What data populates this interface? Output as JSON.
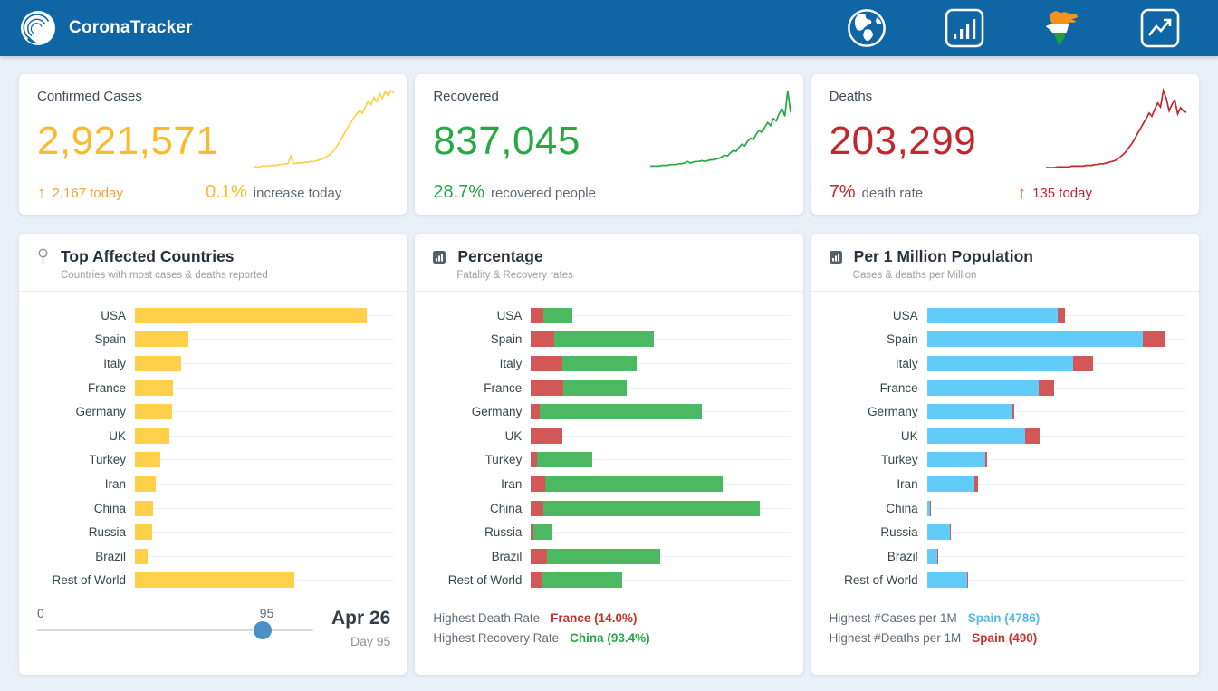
{
  "navbar": {
    "brand": "CoronaTracker",
    "icons": [
      {
        "name": "globe-icon",
        "meaning": "world overview"
      },
      {
        "name": "bar-chart-icon",
        "meaning": "charts view"
      },
      {
        "name": "india-map-icon",
        "meaning": "india view"
      },
      {
        "name": "trend-icon",
        "meaning": "analytics view"
      }
    ]
  },
  "colors": {
    "navbar_bg": "#1065a5",
    "page_bg": "#eaf0f7",
    "confirmed_text": "#fcba2a",
    "confirmed_bar": "#ffd04a",
    "confirmed_accent": "#f9a13d",
    "recovered_text": "#28a745",
    "recovery_bar": "#4cb861",
    "deaths_text": "#c1272d",
    "fatality_bar": "#d25757",
    "cases_per_1m_bar": "#62ccf8",
    "highlight_blue": "#55b7ea",
    "slider_thumb": "#4b8fc7"
  },
  "summary_cards": [
    {
      "title": "Confirmed Cases",
      "value": "2,921,571",
      "today": "2,167 today",
      "rate": "0.1%",
      "rate_label": "increase today",
      "sparkline": [
        2,
        2,
        2,
        3,
        3,
        3,
        4,
        4,
        4,
        5,
        5,
        6,
        6,
        16,
        6,
        7,
        7,
        7,
        8,
        8,
        9,
        9,
        10,
        11,
        12,
        14,
        16,
        19,
        23,
        28,
        34,
        40,
        47,
        53,
        59,
        65,
        70,
        74,
        71,
        79,
        86,
        82,
        91,
        86,
        96,
        90,
        99,
        93,
        100,
        97
      ]
    },
    {
      "title": "Recovered",
      "value": "837,045",
      "rate": "28.7%",
      "rate_label": "recovered people",
      "sparkline": [
        3,
        3,
        3,
        3,
        4,
        4,
        4,
        5,
        5,
        5,
        6,
        6,
        7,
        9,
        7,
        8,
        9,
        9,
        10,
        9,
        10,
        11,
        11,
        12,
        13,
        15,
        17,
        16,
        20,
        23,
        22,
        27,
        31,
        29,
        35,
        39,
        37,
        44,
        49,
        46,
        53,
        59,
        55,
        64,
        61,
        70,
        77,
        67,
        100,
        72
      ]
    },
    {
      "title": "Deaths",
      "value": "203,299",
      "rate": "7%",
      "rate_label": "death rate",
      "today": "135 today",
      "sparkline": [
        1,
        1,
        1,
        1,
        2,
        2,
        2,
        2,
        2,
        3,
        3,
        3,
        3,
        3,
        4,
        4,
        4,
        5,
        5,
        6,
        6,
        7,
        8,
        9,
        10,
        12,
        15,
        18,
        22,
        27,
        32,
        38,
        45,
        51,
        58,
        64,
        71,
        67,
        76,
        84,
        79,
        100,
        90,
        74,
        82,
        88,
        70,
        78,
        74,
        72
      ]
    }
  ],
  "panels": [
    {
      "title": "Top Affected Countries",
      "subtitle": "Countries with most cases & deaths reported",
      "icon": "pin-icon"
    },
    {
      "title": "Percentage",
      "subtitle": "Fatality & Recovery rates",
      "icon": "mini-bar-chart-icon",
      "footer": [
        {
          "label": "Highest Death Rate",
          "value": "France (14.0%)"
        },
        {
          "label": "Highest Recovery Rate",
          "value": "China (93.4%)"
        }
      ]
    },
    {
      "title": "Per 1 Million Population",
      "subtitle": "Cases & deaths per Million",
      "icon": "mini-bar-chart-icon",
      "footer": [
        {
          "label": "Highest #Cases per 1M",
          "value": "Spain (4786)"
        },
        {
          "label": "Highest #Deaths per 1M",
          "value": "Spain (490)"
        }
      ]
    }
  ],
  "slider": {
    "min_label": "0",
    "value_label": "95",
    "thumb_percent": 81.5,
    "date": "Apr 26",
    "day_label": "Day 95"
  },
  "chart_data": [
    {
      "type": "bar",
      "title": "Top Affected Countries",
      "categories": [
        "USA",
        "Spain",
        "Italy",
        "France",
        "Germany",
        "UK",
        "Turkey",
        "Iran",
        "China",
        "Russia",
        "Brazil",
        "Rest of World"
      ],
      "series": [
        {
          "name": "Confirmed cases (relative, % of max)",
          "color": "#ffd04a",
          "values": [
            100,
            23,
            20,
            16.5,
            16,
            15,
            11,
            9,
            8,
            7.5,
            5.5,
            69
          ]
        }
      ],
      "xlim": [
        0,
        112
      ],
      "grid": "per-row horizontal gridlines",
      "legend": "none",
      "note": "bar lengths estimated from pixels; no numeric axis shown"
    },
    {
      "type": "bar",
      "stacked": true,
      "title": "Percentage",
      "categories": [
        "USA",
        "Spain",
        "Italy",
        "France",
        "Germany",
        "UK",
        "Turkey",
        "Iran",
        "China",
        "Russia",
        "Brazil",
        "Rest of World"
      ],
      "series": [
        {
          "name": "Fatality rate (%)",
          "color": "#d25757",
          "values": [
            5.5,
            10.0,
            13.5,
            14.0,
            3.8,
            13.6,
            2.5,
            6.3,
            5.5,
            0.9,
            6.8,
            4.5
          ]
        },
        {
          "name": "Recovery rate (%)",
          "color": "#4cb861",
          "values": [
            12.5,
            43.0,
            32.0,
            27.5,
            70.0,
            0,
            24.0,
            76.5,
            93.4,
            8.5,
            49.0,
            35.0
          ]
        }
      ],
      "xlim": [
        0,
        112
      ],
      "grid": "per-row horizontal gridlines",
      "legend": "none",
      "annotations": [
        "Highest Death Rate France (14.0%)",
        "Highest Recovery Rate China (93.4%)"
      ]
    },
    {
      "type": "bar",
      "stacked": true,
      "title": "Per 1 Million Population",
      "categories": [
        "USA",
        "Spain",
        "Italy",
        "France",
        "Germany",
        "UK",
        "Turkey",
        "Iran",
        "China",
        "Russia",
        "Brazil",
        "Rest of World"
      ],
      "series": [
        {
          "name": "Cases per 1M",
          "color": "#62ccf8",
          "values": [
            2900,
            4786,
            3240,
            2470,
            1870,
            2180,
            1290,
            1060,
            58,
            500,
            230,
            890
          ]
        },
        {
          "name": "Deaths per 1M",
          "color": "#d25757",
          "values": [
            166,
            490,
            440,
            350,
            72,
            310,
            33,
            69,
            3,
            5,
            19,
            30
          ]
        }
      ],
      "xlim": [
        0,
        5750
      ],
      "grid": "per-row horizontal gridlines",
      "legend": "none",
      "annotations": [
        "Highest #Cases per 1M Spain (4786)",
        "Highest #Deaths per 1M Spain (490)"
      ]
    }
  ]
}
